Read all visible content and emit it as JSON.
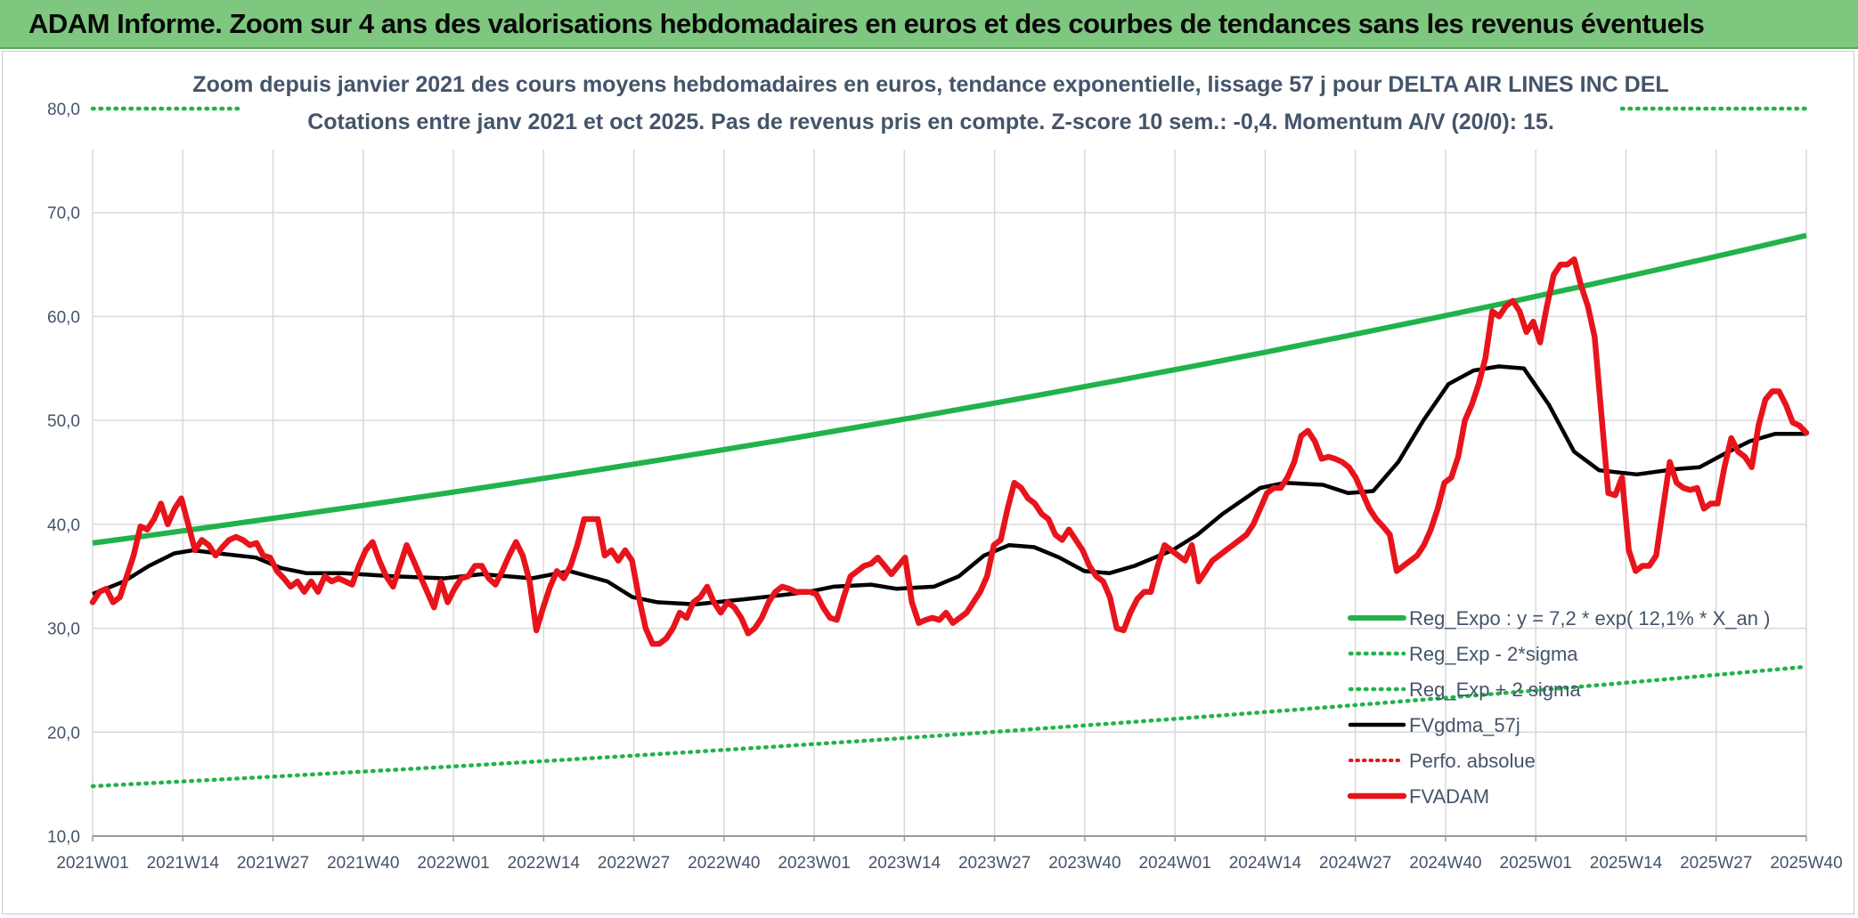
{
  "banner": {
    "title": "ADAM Informe. Zoom sur 4 ans des valorisations hebdomadaires en euros et des courbes de tendances sans les revenus éventuels"
  },
  "colors": {
    "banner_bg": "#7dc77e",
    "reg_expo": "#22b24c",
    "sigma": "#22b24c",
    "fvgdma": "#000000",
    "perfo": "#e8141c",
    "fvadam": "#e8141c",
    "title_text": "#44546a",
    "grid": "#d9d9d9"
  },
  "chart_data": {
    "type": "line",
    "title_line1": "Zoom depuis janvier 2021 des cours moyens hebdomadaires en euros, tendance exponentielle, lissage 57 j pour DELTA AIR LINES INC DEL",
    "title_line2": "Cotations entre janv 2021 et oct 2025. Pas de revenus pris en compte. Z-score 10 sem.: -0,4. Momentum A/V (20/0): 15.",
    "ylim": [
      10,
      80
    ],
    "yticks": [
      "10,0",
      "20,0",
      "30,0",
      "40,0",
      "50,0",
      "60,0",
      "70,0",
      "80,0"
    ],
    "xlim": [
      0,
      248
    ],
    "xtick_labels": [
      "2021W01",
      "2021W14",
      "2021W27",
      "2021W40",
      "2022W01",
      "2022W14",
      "2022W27",
      "2022W40",
      "2023W01",
      "2023W14",
      "2023W27",
      "2023W40",
      "2024W01",
      "2024W14",
      "2024W27",
      "2024W40",
      "2025W01",
      "2025W14",
      "2025W27",
      "2025W40"
    ],
    "legend": [
      {
        "label": "Reg_Expo : y = 7,2 * exp( 12,1% *  X_an )",
        "style": "solid-green"
      },
      {
        "label": "Reg_Exp - 2*sigma",
        "style": "dotted-green"
      },
      {
        "label": "Reg_Exp + 2 sigma",
        "style": "dotted-green"
      },
      {
        "label": "FVgdma_57j",
        "style": "solid-black"
      },
      {
        "label": "Perfo. absolue",
        "style": "dotted-red"
      },
      {
        "label": "FVADAM",
        "style": "solid-red"
      }
    ],
    "series": {
      "reg_expo": {
        "start": 38.2,
        "end": 67.8
      },
      "reg_minus_2sigma": {
        "start": 14.8,
        "end": 26.3
      },
      "reg_plus_2sigma": {
        "value": 80.0
      },
      "fvgdma_57j": [
        [
          0,
          33.3
        ],
        [
          5,
          34.5
        ],
        [
          9,
          36.0
        ],
        [
          13,
          37.2
        ],
        [
          16,
          37.5
        ],
        [
          20,
          37.2
        ],
        [
          26,
          36.8
        ],
        [
          30,
          35.8
        ],
        [
          34,
          35.3
        ],
        [
          40,
          35.3
        ],
        [
          48,
          35.0
        ],
        [
          56,
          34.8
        ],
        [
          62,
          35.2
        ],
        [
          70,
          34.8
        ],
        [
          76,
          35.5
        ],
        [
          82,
          34.5
        ],
        [
          86,
          33.0
        ],
        [
          90,
          32.5
        ],
        [
          96,
          32.3
        ],
        [
          104,
          32.8
        ],
        [
          110,
          33.2
        ],
        [
          114,
          33.5
        ],
        [
          118,
          34.0
        ],
        [
          124,
          34.2
        ],
        [
          128,
          33.8
        ],
        [
          134,
          34.0
        ],
        [
          138,
          35.0
        ],
        [
          142,
          37.0
        ],
        [
          146,
          38.0
        ],
        [
          150,
          37.8
        ],
        [
          154,
          36.8
        ],
        [
          158,
          35.5
        ],
        [
          162,
          35.3
        ],
        [
          166,
          36.0
        ],
        [
          172,
          37.5
        ],
        [
          176,
          39.0
        ],
        [
          180,
          41.0
        ],
        [
          186,
          43.5
        ],
        [
          190,
          44.0
        ],
        [
          196,
          43.8
        ],
        [
          200,
          43.0
        ],
        [
          204,
          43.2
        ],
        [
          208,
          46.0
        ],
        [
          212,
          50.0
        ],
        [
          216,
          53.5
        ],
        [
          220,
          54.8
        ],
        [
          224,
          55.2
        ],
        [
          228,
          55.0
        ],
        [
          232,
          51.5
        ],
        [
          236,
          47.0
        ],
        [
          240,
          45.2
        ],
        [
          246,
          44.8
        ],
        [
          252,
          45.3
        ],
        [
          256,
          45.5
        ],
        [
          260,
          46.8
        ],
        [
          264,
          48.0
        ],
        [
          268,
          48.7
        ],
        [
          273,
          48.7
        ]
      ],
      "fvadam": [
        [
          0,
          32.5
        ],
        [
          1,
          33.5
        ],
        [
          2,
          33.8
        ],
        [
          3,
          32.5
        ],
        [
          4,
          33.0
        ],
        [
          5,
          35.0
        ],
        [
          6,
          37.0
        ],
        [
          7,
          39.8
        ],
        [
          8,
          39.5
        ],
        [
          9,
          40.5
        ],
        [
          10,
          42.0
        ],
        [
          11,
          40.0
        ],
        [
          12,
          41.5
        ],
        [
          13,
          42.5
        ],
        [
          14,
          40.0
        ],
        [
          15,
          37.5
        ],
        [
          16,
          38.5
        ],
        [
          17,
          38.0
        ],
        [
          18,
          37.0
        ],
        [
          19,
          37.8
        ],
        [
          20,
          38.5
        ],
        [
          21,
          38.8
        ],
        [
          22,
          38.5
        ],
        [
          23,
          38.0
        ],
        [
          24,
          38.2
        ],
        [
          25,
          37.0
        ],
        [
          26,
          36.8
        ],
        [
          27,
          35.5
        ],
        [
          28,
          34.8
        ],
        [
          29,
          34.0
        ],
        [
          30,
          34.5
        ],
        [
          31,
          33.5
        ],
        [
          32,
          34.5
        ],
        [
          33,
          33.5
        ],
        [
          34,
          35.0
        ],
        [
          35,
          34.5
        ],
        [
          36,
          34.8
        ],
        [
          37,
          34.5
        ],
        [
          38,
          34.2
        ],
        [
          39,
          36.0
        ],
        [
          40,
          37.5
        ],
        [
          41,
          38.3
        ],
        [
          42,
          36.5
        ],
        [
          43,
          35.0
        ],
        [
          44,
          34.0
        ],
        [
          45,
          36.0
        ],
        [
          46,
          38.0
        ],
        [
          47,
          36.5
        ],
        [
          48,
          35.0
        ],
        [
          49,
          33.5
        ],
        [
          50,
          32.0
        ],
        [
          51,
          34.5
        ],
        [
          52,
          32.5
        ],
        [
          53,
          33.8
        ],
        [
          54,
          34.8
        ],
        [
          55,
          35.0
        ],
        [
          56,
          36.0
        ],
        [
          57,
          36.0
        ],
        [
          58,
          34.8
        ],
        [
          59,
          34.2
        ],
        [
          60,
          35.5
        ],
        [
          61,
          37.0
        ],
        [
          62,
          38.3
        ],
        [
          63,
          37.0
        ],
        [
          64,
          34.5
        ],
        [
          65,
          29.8
        ],
        [
          66,
          32.0
        ],
        [
          67,
          34.0
        ],
        [
          68,
          35.5
        ],
        [
          69,
          34.8
        ],
        [
          70,
          36.0
        ],
        [
          71,
          38.0
        ],
        [
          72,
          40.5
        ],
        [
          73,
          40.5
        ],
        [
          74,
          40.5
        ],
        [
          75,
          37.0
        ],
        [
          76,
          37.5
        ],
        [
          77,
          36.5
        ],
        [
          78,
          37.5
        ],
        [
          79,
          36.5
        ],
        [
          80,
          33.0
        ],
        [
          81,
          30.0
        ],
        [
          82,
          28.5
        ],
        [
          83,
          28.5
        ],
        [
          84,
          29.0
        ],
        [
          85,
          30.0
        ],
        [
          86,
          31.5
        ],
        [
          87,
          31.0
        ],
        [
          88,
          32.5
        ],
        [
          89,
          33.0
        ],
        [
          90,
          34.0
        ],
        [
          91,
          32.5
        ],
        [
          92,
          31.5
        ],
        [
          93,
          32.5
        ],
        [
          94,
          32.0
        ],
        [
          95,
          31.0
        ],
        [
          96,
          29.5
        ],
        [
          97,
          30.0
        ],
        [
          98,
          31.0
        ],
        [
          99,
          32.5
        ],
        [
          100,
          33.5
        ],
        [
          101,
          34.0
        ],
        [
          102,
          33.8
        ],
        [
          103,
          33.5
        ],
        [
          104,
          33.5
        ],
        [
          105,
          33.5
        ],
        [
          106,
          33.3
        ],
        [
          107,
          32.0
        ],
        [
          108,
          31.0
        ],
        [
          109,
          30.8
        ],
        [
          110,
          33.0
        ],
        [
          111,
          35.0
        ],
        [
          112,
          35.5
        ],
        [
          113,
          36.0
        ],
        [
          114,
          36.2
        ],
        [
          115,
          36.8
        ],
        [
          116,
          36.0
        ],
        [
          117,
          35.2
        ],
        [
          118,
          36.0
        ],
        [
          119,
          36.8
        ],
        [
          120,
          32.5
        ],
        [
          121,
          30.5
        ],
        [
          122,
          30.8
        ],
        [
          123,
          31.0
        ],
        [
          124,
          30.8
        ],
        [
          125,
          31.5
        ],
        [
          126,
          30.5
        ],
        [
          127,
          31.0
        ],
        [
          128,
          31.5
        ],
        [
          129,
          32.5
        ],
        [
          130,
          33.5
        ],
        [
          131,
          35.0
        ],
        [
          132,
          38.0
        ],
        [
          133,
          38.5
        ],
        [
          134,
          41.5
        ],
        [
          135,
          44.0
        ],
        [
          136,
          43.5
        ],
        [
          137,
          42.5
        ],
        [
          138,
          42.0
        ],
        [
          139,
          41.0
        ],
        [
          140,
          40.5
        ],
        [
          141,
          39.0
        ],
        [
          142,
          38.5
        ],
        [
          143,
          39.5
        ],
        [
          144,
          38.5
        ],
        [
          145,
          37.5
        ],
        [
          146,
          36.0
        ],
        [
          147,
          35.0
        ],
        [
          148,
          34.5
        ],
        [
          149,
          33.0
        ],
        [
          150,
          30.0
        ],
        [
          151,
          29.8
        ],
        [
          152,
          31.5
        ],
        [
          153,
          32.8
        ],
        [
          154,
          33.5
        ],
        [
          155,
          33.5
        ],
        [
          156,
          36.0
        ],
        [
          157,
          38.0
        ],
        [
          158,
          37.5
        ],
        [
          159,
          37.0
        ],
        [
          160,
          36.5
        ],
        [
          161,
          38.0
        ],
        [
          162,
          34.5
        ],
        [
          163,
          35.5
        ],
        [
          164,
          36.5
        ],
        [
          165,
          37.0
        ],
        [
          166,
          37.5
        ],
        [
          167,
          38.0
        ],
        [
          168,
          38.5
        ],
        [
          169,
          39.0
        ],
        [
          170,
          40.0
        ],
        [
          171,
          41.5
        ],
        [
          172,
          43.0
        ],
        [
          173,
          43.5
        ],
        [
          174,
          43.5
        ],
        [
          175,
          44.5
        ],
        [
          176,
          46.0
        ],
        [
          177,
          48.5
        ],
        [
          178,
          49.0
        ],
        [
          179,
          48.0
        ],
        [
          180,
          46.3
        ],
        [
          181,
          46.5
        ],
        [
          182,
          46.3
        ],
        [
          183,
          46.0
        ],
        [
          184,
          45.5
        ],
        [
          185,
          44.5
        ],
        [
          186,
          43.0
        ],
        [
          187,
          41.5
        ],
        [
          188,
          40.5
        ],
        [
          189,
          39.8
        ],
        [
          190,
          39.0
        ],
        [
          191,
          35.5
        ],
        [
          192,
          36.0
        ],
        [
          193,
          36.5
        ],
        [
          194,
          37.0
        ],
        [
          195,
          38.0
        ],
        [
          196,
          39.5
        ],
        [
          197,
          41.5
        ],
        [
          198,
          44.0
        ],
        [
          199,
          44.5
        ],
        [
          200,
          46.5
        ],
        [
          201,
          50.0
        ],
        [
          202,
          51.5
        ],
        [
          203,
          53.5
        ],
        [
          204,
          56.0
        ],
        [
          205,
          60.5
        ],
        [
          206,
          60.0
        ],
        [
          207,
          61.0
        ],
        [
          208,
          61.5
        ],
        [
          209,
          60.5
        ],
        [
          210,
          58.5
        ],
        [
          211,
          59.5
        ],
        [
          212,
          57.5
        ],
        [
          213,
          61.0
        ],
        [
          214,
          64.0
        ],
        [
          215,
          65.0
        ],
        [
          216,
          65.0
        ],
        [
          217,
          65.5
        ],
        [
          218,
          63.0
        ],
        [
          219,
          61.0
        ],
        [
          220,
          58.0
        ],
        [
          221,
          50.5
        ],
        [
          222,
          43.0
        ],
        [
          223,
          42.8
        ],
        [
          224,
          44.5
        ],
        [
          225,
          37.5
        ],
        [
          226,
          35.5
        ],
        [
          227,
          36.0
        ],
        [
          228,
          36.0
        ],
        [
          229,
          37.0
        ],
        [
          230,
          41.5
        ],
        [
          231,
          46.0
        ],
        [
          232,
          44.0
        ],
        [
          233,
          43.5
        ],
        [
          234,
          43.3
        ],
        [
          235,
          43.5
        ],
        [
          236,
          41.5
        ],
        [
          237,
          42.0
        ],
        [
          238,
          42.0
        ],
        [
          239,
          45.5
        ],
        [
          240,
          48.3
        ],
        [
          241,
          47.0
        ],
        [
          242,
          46.5
        ],
        [
          243,
          45.5
        ],
        [
          244,
          49.5
        ],
        [
          245,
          52.0
        ],
        [
          246,
          52.8
        ],
        [
          247,
          52.8
        ],
        [
          248,
          51.5
        ],
        [
          249,
          49.8
        ],
        [
          250,
          49.5
        ],
        [
          251,
          48.8
        ]
      ]
    }
  }
}
